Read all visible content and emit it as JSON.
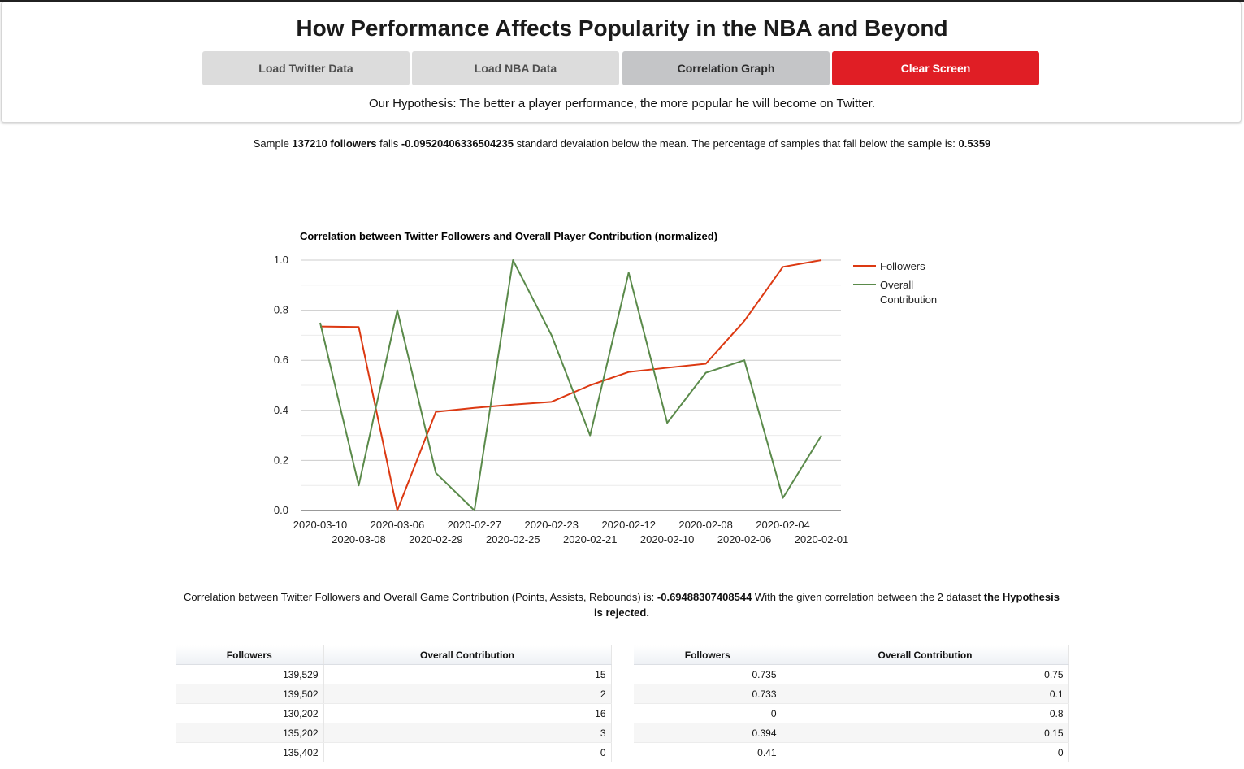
{
  "header": {
    "title": "How Performance Affects Popularity in the NBA and Beyond",
    "buttons": {
      "load_twitter": "Load Twitter Data",
      "load_nba": "Load NBA Data",
      "correlation_graph": "Correlation Graph",
      "clear_screen": "Clear Screen"
    },
    "hypothesis": "Our Hypothesis: The better a player performance, the more popular he will become on Twitter."
  },
  "sample": {
    "prefix": "Sample",
    "followers": "137210 followers",
    "falls": "falls",
    "zscore": "-0.09520406336504235",
    "middle": "standard devaiation below the mean. The percentage of samples that fall below the sample is:",
    "percentile": "0.5359"
  },
  "correlation": {
    "prefix": "Correlation between Twitter Followers and Overall Game Contribution (Points, Assists, Rebounds) is:",
    "value": "-0.69488307408544",
    "middle": "With the given correlation between the 2 dataset",
    "conclusion": "the Hypothesis is rejected."
  },
  "chart_data": {
    "type": "line",
    "title": "Correlation between Twitter Followers and Overall Player Contribution (normalized)",
    "xlabel": "",
    "ylabel": "",
    "ylim": [
      0,
      1
    ],
    "y_ticks": [
      "0.0",
      "0.2",
      "0.4",
      "0.6",
      "0.8",
      "1.0"
    ],
    "grid": true,
    "legend_position": "right",
    "categories": [
      "2020-03-10",
      "2020-03-08",
      "2020-03-06",
      "2020-02-29",
      "2020-02-27",
      "2020-02-25",
      "2020-02-23",
      "2020-02-21",
      "2020-02-12",
      "2020-02-10",
      "2020-02-08",
      "2020-02-06",
      "2020-02-04",
      "2020-02-01"
    ],
    "series": [
      {
        "name": "Followers",
        "color": "#dc3912",
        "values": [
          0.735,
          0.733,
          0,
          0.394,
          0.41,
          0.423,
          0.434,
          0.5,
          0.553,
          0.57,
          0.586,
          0.757,
          0.973,
          1.0
        ]
      },
      {
        "name": "Overall Contribution",
        "color": "#5a8a4a",
        "values": [
          0.75,
          0.1,
          0.8,
          0.15,
          0,
          1.0,
          0.7,
          0.3,
          0.95,
          0.35,
          0.55,
          0.6,
          0.05,
          0.3
        ]
      }
    ]
  },
  "tables": {
    "left": {
      "headers": [
        "Followers",
        "Overall Contribution"
      ],
      "rows": [
        [
          "139,529",
          "15"
        ],
        [
          "139,502",
          "2"
        ],
        [
          "130,202",
          "16"
        ],
        [
          "135,202",
          "3"
        ],
        [
          "135,402",
          "0"
        ]
      ]
    },
    "right": {
      "headers": [
        "Followers",
        "Overall Contribution"
      ],
      "rows": [
        [
          "0.735",
          "0.75"
        ],
        [
          "0.733",
          "0.1"
        ],
        [
          "0",
          "0.8"
        ],
        [
          "0.394",
          "0.15"
        ],
        [
          "0.41",
          "0"
        ]
      ]
    }
  }
}
